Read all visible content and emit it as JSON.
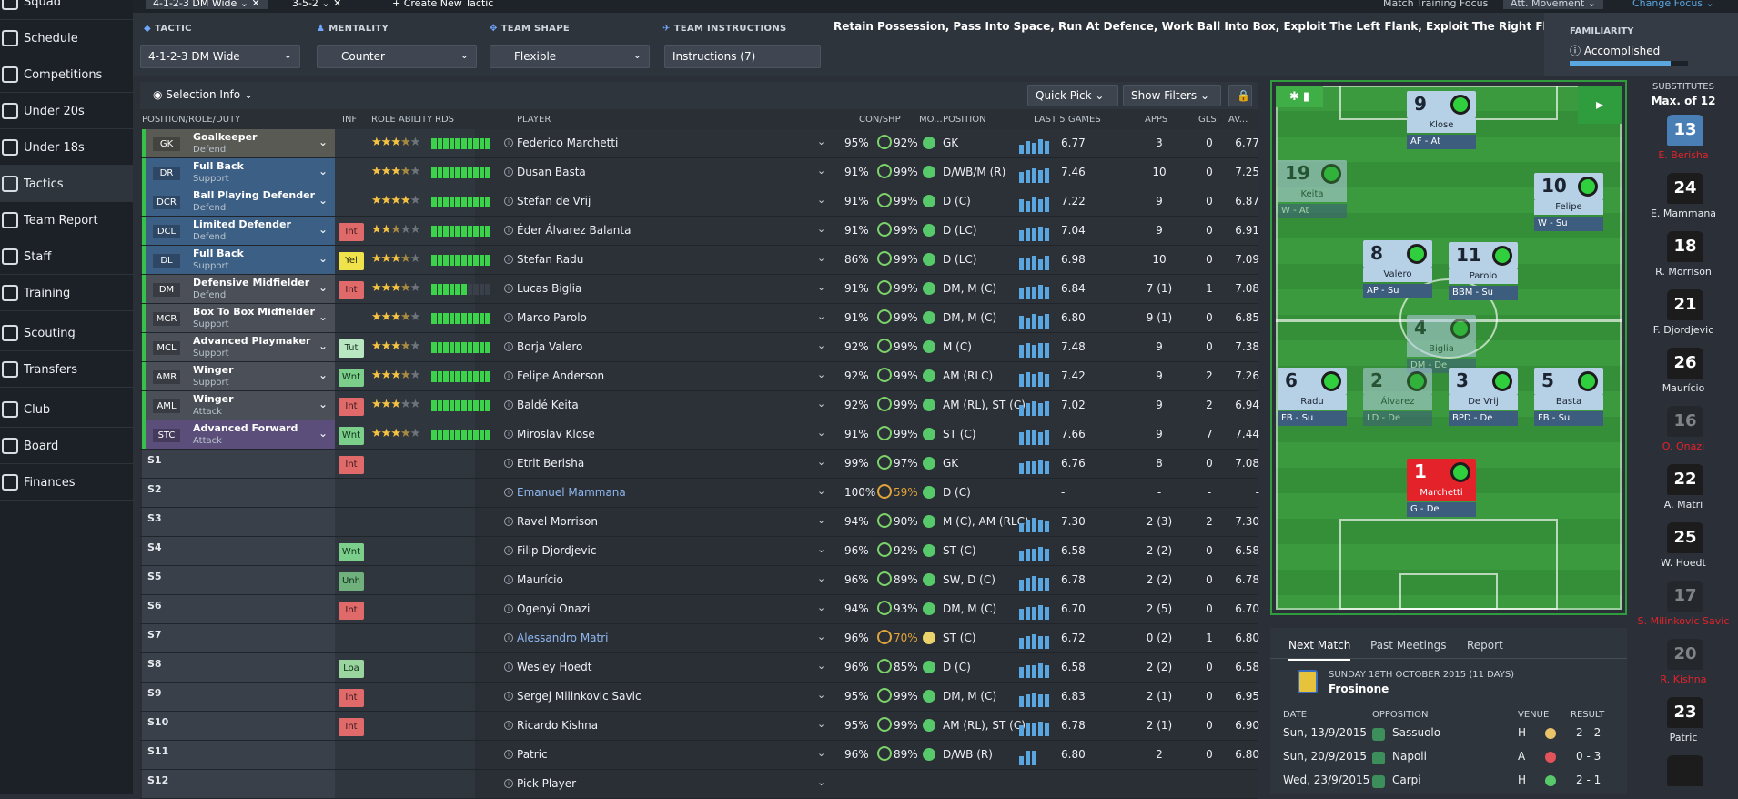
{
  "sidebar": {
    "items": [
      {
        "label": "Squad",
        "icon": "squad-icon"
      },
      {
        "label": "Schedule",
        "icon": "calendar-icon"
      },
      {
        "label": "Competitions",
        "icon": "trophy-icon"
      },
      {
        "label": "Under 20s",
        "icon": "squad-icon"
      },
      {
        "label": "Under 18s",
        "icon": "squad-icon"
      },
      {
        "label": "Tactics",
        "icon": "tactics-icon"
      },
      {
        "label": "Team Report",
        "icon": "report-icon"
      },
      {
        "label": "Staff",
        "icon": "staff-icon"
      },
      {
        "label": "Training",
        "icon": "training-icon"
      },
      {
        "label": "Scouting",
        "icon": "search-icon"
      },
      {
        "label": "Transfers",
        "icon": "transfer-icon"
      },
      {
        "label": "Club",
        "icon": "club-icon"
      },
      {
        "label": "Board",
        "icon": "board-icon"
      },
      {
        "label": "Finances",
        "icon": "finances-icon"
      }
    ]
  },
  "tabs": {
    "t1": "4-1-2-3 DM Wide",
    "t2": "3-5-2",
    "t3": "Create New Tactic",
    "focus": "Match Training Focus",
    "movement": "Att. Movement",
    "change": "Change Focus"
  },
  "tactic": {
    "label": "TACTIC",
    "value": "4-1-2-3 DM Wide"
  },
  "mentality": {
    "label": "MENTALITY",
    "value": "Counter"
  },
  "shape": {
    "label": "TEAM SHAPE",
    "value": "Flexible"
  },
  "instructions": {
    "label": "TEAM INSTRUCTIONS",
    "value": "Instructions (7)",
    "text": "Retain Possession, Pass Into Space, Run At Defence, Work Ball Into Box, Exploit The Left Flank, Exploit The Right Flank, Look For Overlap"
  },
  "familiarity": {
    "label": "FAMILIARITY",
    "value": "Accomplished",
    "level": 0.85
  },
  "toolbar": {
    "selection": "Selection Info",
    "quick": "Quick Pick",
    "filters": "Show Filters"
  },
  "columns": {
    "position": "POSITION/ROLE/DUTY",
    "inf": "INF",
    "role_ability": "ROLE ABILITY",
    "rds": "RDS",
    "player": "PLAYER",
    "con": "CON/SHP",
    "mo": "MO...",
    "pos": "POSITION",
    "last5": "LAST 5 GAMES",
    "apps": "APPS",
    "gls": "GLS",
    "av": "AV..."
  },
  "starters": [
    {
      "pos": "GK",
      "role": "Goalkeeper",
      "duty": "Defend",
      "color": "#5a5a55",
      "inf": "",
      "stars": 3.5,
      "rds": 10,
      "name": "Federico Marchetti",
      "con": "95%",
      "shp": "92%",
      "ppos": "GK",
      "form": [
        10,
        14,
        12,
        16,
        14
      ],
      "avg": "6.77",
      "apps": "3",
      "gls": "0",
      "av": "6.77"
    },
    {
      "pos": "DR",
      "role": "Full Back",
      "duty": "Support",
      "color": "#3c5f86",
      "inf": "",
      "stars": 3.5,
      "rds": 10,
      "name": "Dusan Basta",
      "con": "91%",
      "shp": "99%",
      "ppos": "D/WB/M (R)",
      "form": [
        12,
        14,
        16,
        14,
        16
      ],
      "avg": "7.46",
      "apps": "10",
      "gls": "0",
      "av": "7.25"
    },
    {
      "pos": "DCR",
      "role": "Ball Playing Defender",
      "duty": "Defend",
      "color": "#3c5f86",
      "inf": "",
      "stars": 4,
      "rds": 10,
      "name": "Stefan de Vrij",
      "con": "91%",
      "shp": "99%",
      "ppos": "D (C)",
      "form": [
        14,
        12,
        16,
        14,
        16
      ],
      "avg": "7.22",
      "apps": "9",
      "gls": "0",
      "av": "6.87"
    },
    {
      "pos": "DCL",
      "role": "Limited Defender",
      "duty": "Defend",
      "color": "#3c5f86",
      "inf": "Int",
      "stars": 2.5,
      "rds": 10,
      "name": "Éder Álvarez Balanta",
      "con": "91%",
      "shp": "99%",
      "ppos": "D (LC)",
      "form": [
        12,
        14,
        14,
        16,
        14
      ],
      "avg": "7.04",
      "apps": "9",
      "gls": "0",
      "av": "6.91"
    },
    {
      "pos": "DL",
      "role": "Full Back",
      "duty": "Support",
      "color": "#3c5f86",
      "inf": "Yel",
      "stars": 3.5,
      "rds": 10,
      "name": "Stefan Radu",
      "con": "86%",
      "shp": "99%",
      "ppos": "D (LC)",
      "form": [
        14,
        14,
        16,
        12,
        16
      ],
      "avg": "6.98",
      "apps": "10",
      "gls": "0",
      "av": "7.09"
    },
    {
      "pos": "DM",
      "role": "Defensive Midfielder",
      "duty": "Defend",
      "color": "#4b5058",
      "inf": "Int",
      "stars": 3.5,
      "rds": 6,
      "name": "Lucas Biglia",
      "con": "91%",
      "shp": "99%",
      "ppos": "DM, M (C)",
      "form": [
        12,
        14,
        14,
        16,
        14
      ],
      "avg": "6.84",
      "apps": "7 (1)",
      "gls": "1",
      "av": "7.08"
    },
    {
      "pos": "MCR",
      "role": "Box To Box Midfielder",
      "duty": "Support",
      "color": "#4b5058",
      "inf": "",
      "stars": 3.5,
      "rds": 10,
      "name": "Marco Parolo",
      "con": "91%",
      "shp": "99%",
      "ppos": "DM, M (C)",
      "form": [
        14,
        12,
        16,
        14,
        16
      ],
      "avg": "6.80",
      "apps": "9 (1)",
      "gls": "0",
      "av": "6.85"
    },
    {
      "pos": "MCL",
      "role": "Advanced Playmaker",
      "duty": "Support",
      "color": "#4b5058",
      "inf": "Tut",
      "stars": 3.5,
      "rds": 10,
      "name": "Borja Valero",
      "con": "92%",
      "shp": "99%",
      "ppos": "M (C)",
      "form": [
        14,
        16,
        14,
        16,
        16
      ],
      "avg": "7.48",
      "apps": "9",
      "gls": "0",
      "av": "7.38"
    },
    {
      "pos": "AMR",
      "role": "Winger",
      "duty": "Support",
      "color": "#4b5058",
      "inf": "Wnt",
      "stars": 3.5,
      "rds": 10,
      "name": "Felipe Anderson",
      "con": "92%",
      "shp": "99%",
      "ppos": "AM (RLC)",
      "form": [
        14,
        16,
        14,
        16,
        14
      ],
      "avg": "7.42",
      "apps": "9",
      "gls": "2",
      "av": "7.26"
    },
    {
      "pos": "AML",
      "role": "Winger",
      "duty": "Attack",
      "color": "#4b5058",
      "inf": "Int",
      "stars": 3,
      "rds": 10,
      "name": "Baldé Keita",
      "con": "92%",
      "shp": "99%",
      "ppos": "AM (RL), ST (C)",
      "form": [
        12,
        14,
        16,
        14,
        16
      ],
      "avg": "7.02",
      "apps": "9",
      "gls": "2",
      "av": "6.94"
    },
    {
      "pos": "STC",
      "role": "Advanced Forward",
      "duty": "Attack",
      "color": "#5b4e7a",
      "inf": "Wnt",
      "stars": 3.5,
      "rds": 10,
      "name": "Miroslav Klose",
      "con": "91%",
      "shp": "99%",
      "ppos": "ST (C)",
      "form": [
        14,
        16,
        16,
        14,
        16
      ],
      "avg": "7.66",
      "apps": "9",
      "gls": "7",
      "av": "7.44"
    }
  ],
  "subs_rows": [
    {
      "slot": "S1",
      "inf": "Int",
      "name": "Etrit Berisha",
      "blue": false,
      "con": "99%",
      "shp": "97%",
      "warn": false,
      "ppos": "GK",
      "form": [
        12,
        14,
        14,
        16,
        14
      ],
      "avg": "6.76",
      "apps": "8",
      "gls": "0",
      "av": "7.08",
      "mo": "g"
    },
    {
      "slot": "S2",
      "inf": "",
      "name": "Emanuel Mammana",
      "blue": true,
      "con": "100%",
      "shp": "59%",
      "warn": true,
      "ppos": "D (C)",
      "form": [],
      "avg": "-",
      "apps": "-",
      "gls": "-",
      "av": "-",
      "mo": "g"
    },
    {
      "slot": "S3",
      "inf": "",
      "name": "Ravel Morrison",
      "blue": false,
      "con": "94%",
      "shp": "90%",
      "warn": false,
      "ppos": "M (C), AM (RLC)",
      "form": [
        10,
        14,
        16,
        14,
        12
      ],
      "avg": "7.30",
      "apps": "2 (3)",
      "gls": "2",
      "av": "7.30",
      "mo": "g"
    },
    {
      "slot": "S4",
      "inf": "Wnt",
      "name": "Filip Djordjevic",
      "blue": false,
      "con": "96%",
      "shp": "92%",
      "warn": false,
      "ppos": "ST (C)",
      "form": [
        12,
        14,
        14,
        16,
        14
      ],
      "avg": "6.58",
      "apps": "2 (2)",
      "gls": "0",
      "av": "6.58",
      "mo": "g"
    },
    {
      "slot": "S5",
      "inf": "Unh",
      "name": "Maurício",
      "blue": false,
      "con": "96%",
      "shp": "89%",
      "warn": false,
      "ppos": "SW, D (C)",
      "form": [
        12,
        14,
        16,
        14,
        14
      ],
      "avg": "6.78",
      "apps": "2 (2)",
      "gls": "0",
      "av": "6.78",
      "mo": "g"
    },
    {
      "slot": "S6",
      "inf": "Int",
      "name": "Ogenyi Onazi",
      "blue": false,
      "con": "94%",
      "shp": "93%",
      "warn": false,
      "ppos": "DM, M (C)",
      "form": [
        12,
        14,
        14,
        16,
        14
      ],
      "avg": "6.70",
      "apps": "2 (5)",
      "gls": "0",
      "av": "6.70",
      "mo": "g"
    },
    {
      "slot": "S7",
      "inf": "",
      "name": "Alessandro Matri",
      "blue": true,
      "con": "96%",
      "shp": "70%",
      "warn": true,
      "ppos": "ST (C)",
      "form": [
        12,
        14,
        16,
        14,
        14
      ],
      "avg": "6.72",
      "apps": "0 (2)",
      "gls": "1",
      "av": "6.80",
      "mo": "y"
    },
    {
      "slot": "S8",
      "inf": "Loa",
      "name": "Wesley Hoedt",
      "blue": false,
      "con": "96%",
      "shp": "85%",
      "warn": false,
      "ppos": "D (C)",
      "form": [
        12,
        14,
        14,
        16,
        14
      ],
      "avg": "6.58",
      "apps": "2 (2)",
      "gls": "0",
      "av": "6.58",
      "mo": "g"
    },
    {
      "slot": "S9",
      "inf": "Int",
      "name": "Sergej Milinkovic Savic",
      "blue": false,
      "con": "95%",
      "shp": "99%",
      "warn": false,
      "ppos": "DM, M (C)",
      "form": [
        12,
        14,
        16,
        14,
        14
      ],
      "avg": "6.83",
      "apps": "2 (1)",
      "gls": "0",
      "av": "6.95",
      "mo": "g"
    },
    {
      "slot": "S10",
      "inf": "Int",
      "name": "Ricardo Kishna",
      "blue": false,
      "con": "95%",
      "shp": "99%",
      "warn": false,
      "ppos": "AM (RL), ST (C)",
      "form": [
        12,
        14,
        14,
        16,
        14
      ],
      "avg": "6.78",
      "apps": "2 (1)",
      "gls": "0",
      "av": "6.90",
      "mo": "g"
    },
    {
      "slot": "S11",
      "inf": "",
      "name": "Patric",
      "blue": false,
      "con": "96%",
      "shp": "89%",
      "warn": false,
      "ppos": "D/WB (R)",
      "form": [
        10,
        16,
        16
      ],
      "avg": "6.80",
      "apps": "2",
      "gls": "0",
      "av": "6.80",
      "mo": "g"
    },
    {
      "slot": "S12",
      "inf": "",
      "name": "Pick Player",
      "blue": false,
      "con": "",
      "shp": "",
      "warn": false,
      "ppos": "-",
      "form": [],
      "avg": "-",
      "apps": "-",
      "gls": "-",
      "av": "-",
      "mo": ""
    }
  ],
  "pitch_players": [
    {
      "num": "9",
      "name": "Klose",
      "role": "AF - At",
      "red": false,
      "inj": false
    },
    {
      "num": "19",
      "name": "Keita",
      "role": "W - At",
      "red": false,
      "inj": true
    },
    {
      "num": "10",
      "name": "Felipe Anderson",
      "role": "W - Su",
      "red": false,
      "inj": false
    },
    {
      "num": "8",
      "name": "Valero",
      "role": "AP - Su",
      "red": false,
      "inj": false
    },
    {
      "num": "11",
      "name": "Parolo",
      "role": "BBM - Su",
      "red": false,
      "inj": false
    },
    {
      "num": "4",
      "name": "Biglia",
      "role": "DM - De",
      "red": false,
      "inj": true
    },
    {
      "num": "6",
      "name": "Radu",
      "role": "FB - Su",
      "red": false,
      "inj": false
    },
    {
      "num": "2",
      "name": "Álvarez Balanta",
      "role": "LD - De",
      "red": false,
      "inj": true
    },
    {
      "num": "3",
      "name": "De Vrij",
      "role": "BPD - De",
      "red": false,
      "inj": false
    },
    {
      "num": "5",
      "name": "Basta",
      "role": "FB - Su",
      "red": false,
      "inj": false
    },
    {
      "num": "1",
      "name": "Marchetti",
      "role": "G - De",
      "red": true,
      "inj": false
    }
  ],
  "subs": {
    "title": "SUBSTITUTES",
    "max": "Max. of 12",
    "list": [
      {
        "num": "13",
        "name": "E. Berisha",
        "style": "blue",
        "red": true
      },
      {
        "num": "24",
        "name": "E. Mammana",
        "style": "",
        "red": false
      },
      {
        "num": "18",
        "name": "R. Morrison",
        "style": "",
        "red": false
      },
      {
        "num": "21",
        "name": "F. Djordjevic",
        "style": "",
        "red": false
      },
      {
        "num": "26",
        "name": "Maurício",
        "style": "",
        "red": false
      },
      {
        "num": "16",
        "name": "O. Onazi",
        "style": "faded",
        "red": true
      },
      {
        "num": "22",
        "name": "A. Matri",
        "style": "",
        "red": false
      },
      {
        "num": "25",
        "name": "W. Hoedt",
        "style": "",
        "red": false
      },
      {
        "num": "17",
        "name": "S. Milinkovic Savic",
        "style": "faded",
        "red": true
      },
      {
        "num": "20",
        "name": "R. Kishna",
        "style": "faded",
        "red": true
      },
      {
        "num": "23",
        "name": "Patric",
        "style": "",
        "red": false
      },
      {
        "num": "",
        "name": "",
        "style": "",
        "red": false
      }
    ]
  },
  "match": {
    "tabs": [
      "Next Match",
      "Past Meetings",
      "Report"
    ],
    "next_date": "SUNDAY 18TH OCTOBER 2015 (11 DAYS)",
    "next_team": "Frosinone",
    "head": {
      "date": "DATE",
      "opp": "OPPOSITION",
      "venue": "VENUE",
      "result": "RESULT"
    },
    "rows": [
      {
        "date": "Sun, 13/9/2015",
        "opp": "Sassuolo",
        "venue": "H",
        "result": "2 - 2",
        "dot": "#e9c46a"
      },
      {
        "date": "Sun, 20/9/2015",
        "opp": "Napoli",
        "venue": "A",
        "result": "0 - 3",
        "dot": "#e3535a"
      },
      {
        "date": "Wed, 23/9/2015",
        "opp": "Carpi",
        "venue": "H",
        "result": "2 - 1",
        "dot": "#58c96a"
      }
    ]
  }
}
